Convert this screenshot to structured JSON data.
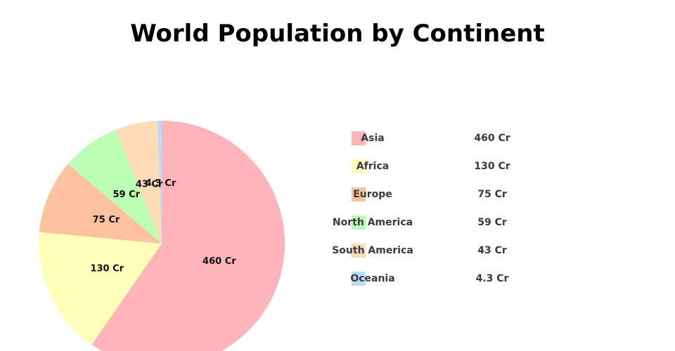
{
  "chart_data": {
    "type": "pie",
    "title": "World Population by Continent",
    "categories": [
      "Asia",
      "Africa",
      "Europe",
      "North America",
      "South America",
      "Oceania"
    ],
    "values": [
      460,
      130,
      75,
      59,
      43,
      4.3
    ],
    "value_labels": [
      "460 Cr",
      "130 Cr",
      "75 Cr",
      "59 Cr",
      "43 Cr",
      "4.3 Cr"
    ],
    "colors": [
      "#ffb3ba",
      "#ffffba",
      "#ffc29f",
      "#baffb3",
      "#ffdbb8",
      "#b8dcff"
    ],
    "legend": "right"
  }
}
